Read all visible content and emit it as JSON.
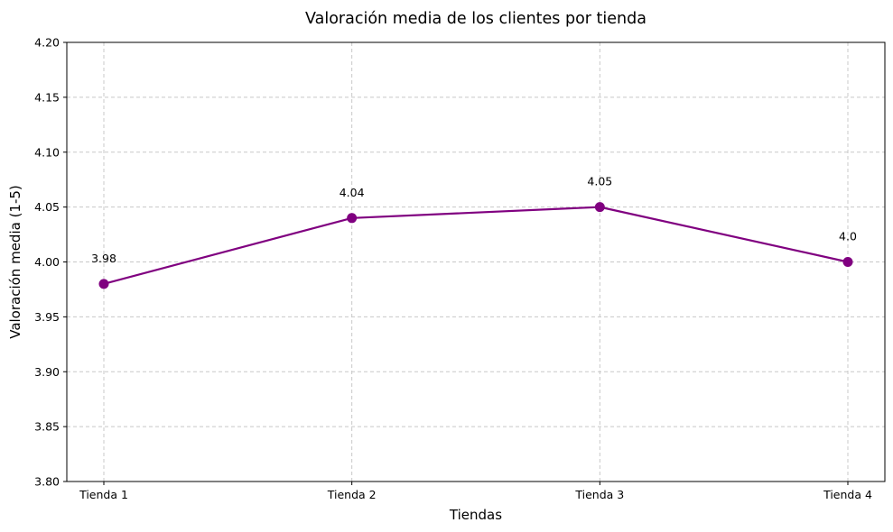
{
  "chart_data": {
    "type": "line",
    "title": "Valoración media de los clientes por tienda",
    "xlabel": "Tiendas",
    "ylabel": "Valoración media (1-5)",
    "categories": [
      "Tienda 1",
      "Tienda 2",
      "Tienda 3",
      "Tienda 4"
    ],
    "series": [
      {
        "values": [
          3.98,
          4.04,
          4.05,
          4.0
        ]
      }
    ],
    "data_labels": [
      "3.98",
      "4.04",
      "4.05",
      "4.0"
    ],
    "ylim": [
      3.8,
      4.2
    ],
    "yticks": [
      "3.80",
      "3.85",
      "3.90",
      "3.95",
      "4.00",
      "4.05",
      "4.10",
      "4.15",
      "4.20"
    ],
    "grid": true,
    "legend": "none",
    "line_color": "#800080",
    "marker": "circle"
  }
}
